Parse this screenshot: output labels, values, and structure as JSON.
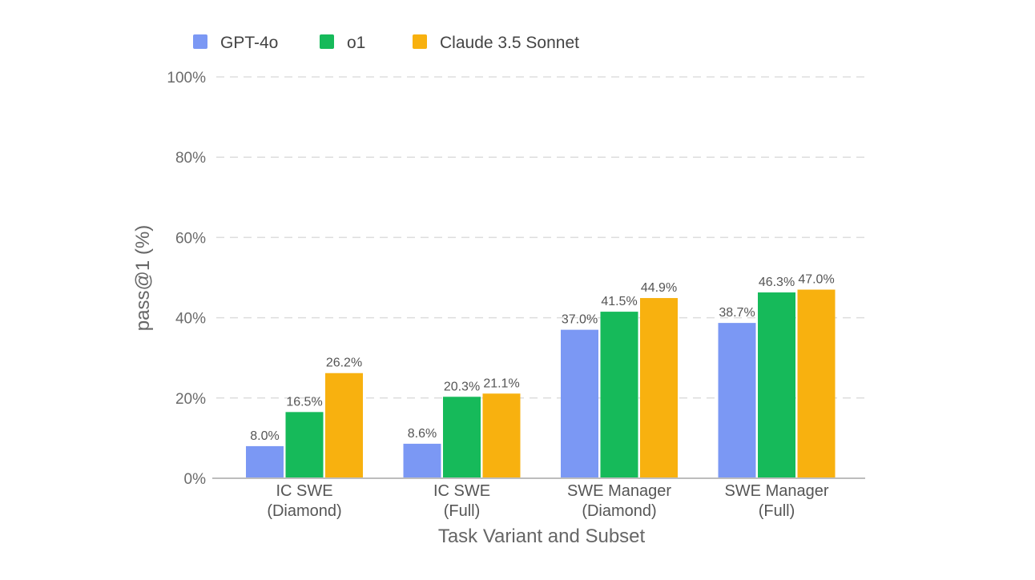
{
  "chart_data": {
    "type": "bar",
    "xlabel": "Task Variant and Subset",
    "ylabel": "pass@1 (%)",
    "ylim": [
      0,
      100
    ],
    "yticks": [
      0,
      20,
      40,
      60,
      80,
      100
    ],
    "ytick_labels": [
      "0%",
      "20%",
      "40%",
      "60%",
      "80%",
      "100%"
    ],
    "grid": true,
    "legend_position": "top-left",
    "categories": [
      [
        "IC SWE",
        "(Diamond)"
      ],
      [
        "IC SWE",
        "(Full)"
      ],
      [
        "SWE Manager",
        "(Diamond)"
      ],
      [
        "SWE Manager",
        "(Full)"
      ]
    ],
    "series": [
      {
        "name": "GPT-4o",
        "color": "#7b98f4",
        "values": [
          8.0,
          8.6,
          37.0,
          38.7
        ],
        "labels": [
          "8.0%",
          "8.6%",
          "37.0%",
          "38.7%"
        ]
      },
      {
        "name": "o1",
        "color": "#16ba5a",
        "values": [
          16.5,
          20.3,
          41.5,
          46.3
        ],
        "labels": [
          "16.5%",
          "20.3%",
          "41.5%",
          "46.3%"
        ]
      },
      {
        "name": "Claude 3.5 Sonnet",
        "color": "#f8b10f",
        "values": [
          26.2,
          21.1,
          44.9,
          47.0
        ],
        "labels": [
          "26.2%",
          "21.1%",
          "44.9%",
          "47.0%"
        ]
      }
    ]
  }
}
